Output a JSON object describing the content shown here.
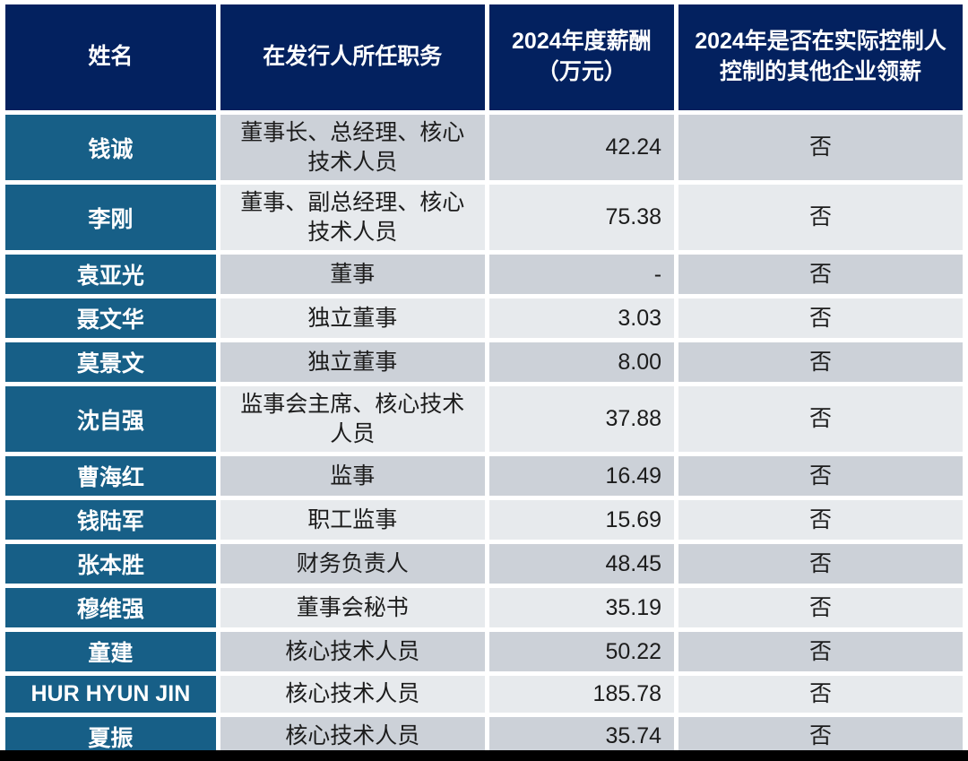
{
  "table": {
    "headers": [
      "姓名",
      "在发行人所任职务",
      "2024年度薪酬\n（万元）",
      "2024年是否在实际控制人控制的其他企业领薪"
    ],
    "rows": [
      {
        "name": "钱诚",
        "position": "董事长、总经理、核心技术人员",
        "salary": "42.24",
        "other_pay": "否"
      },
      {
        "name": "李刚",
        "position": "董事、副总经理、核心技术人员",
        "salary": "75.38",
        "other_pay": "否"
      },
      {
        "name": "袁亚光",
        "position": "董事",
        "salary": "-",
        "other_pay": "否"
      },
      {
        "name": "聂文华",
        "position": "独立董事",
        "salary": "3.03",
        "other_pay": "否"
      },
      {
        "name": "莫景文",
        "position": "独立董事",
        "salary": "8.00",
        "other_pay": "否"
      },
      {
        "name": "沈自强",
        "position": "监事会主席、核心技术人员",
        "salary": "37.88",
        "other_pay": "否"
      },
      {
        "name": "曹海红",
        "position": "监事",
        "salary": "16.49",
        "other_pay": "否"
      },
      {
        "name": "钱陆军",
        "position": "职工监事",
        "salary": "15.69",
        "other_pay": "否"
      },
      {
        "name": "张本胜",
        "position": "财务负责人",
        "salary": "48.45",
        "other_pay": "否"
      },
      {
        "name": "穆维强",
        "position": "董事会秘书",
        "salary": "35.19",
        "other_pay": "否"
      },
      {
        "name": "童建",
        "position": "核心技术人员",
        "salary": "50.22",
        "other_pay": "否"
      },
      {
        "name": "HUR HYUN JIN",
        "position": "核心技术人员",
        "salary": "185.78",
        "other_pay": "否"
      },
      {
        "name": "夏振",
        "position": "核心技术人员",
        "salary": "35.74",
        "other_pay": "否"
      }
    ]
  },
  "colors": {
    "header_bg": "#03215F",
    "name_col_bg": "#175F87",
    "band_dark": "#CCD1D8",
    "band_light": "#E7EAED",
    "header_text": "#FFFFFF",
    "body_text": "#1C1C1C",
    "gutter": "#FFFFFF",
    "bottom_bar": "#000000"
  }
}
